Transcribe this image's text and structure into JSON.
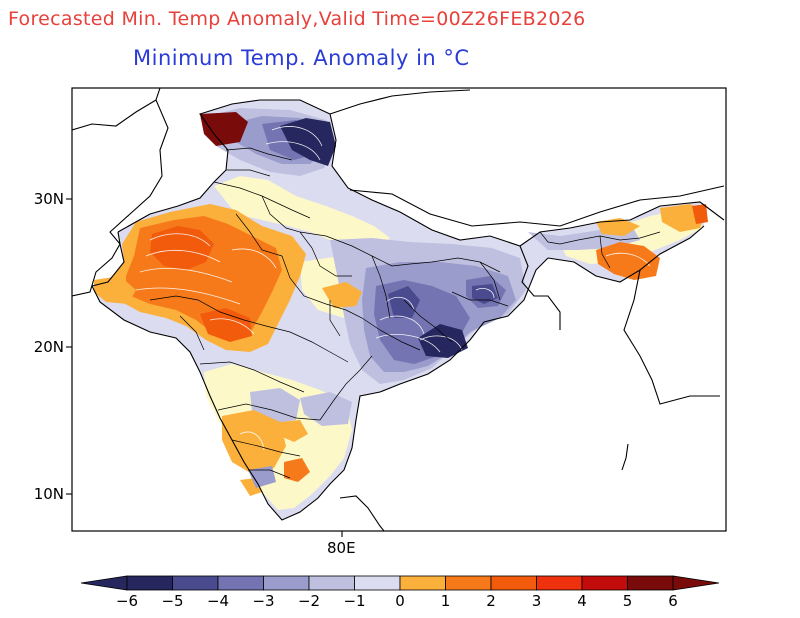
{
  "header": {
    "title": "Forecasted Min. Temp Anomaly,Valid Time=00Z26FEB2026",
    "subtitle": "Minimum Temp. Anomaly in °C"
  },
  "axes": {
    "lat_labels": [
      "30N",
      "20N",
      "10N"
    ],
    "lon_labels": [
      "80E"
    ]
  },
  "colorbar": {
    "ticks": [
      "−6",
      "−5",
      "−4",
      "−3",
      "−2",
      "−1",
      "0",
      "1",
      "2",
      "3",
      "4",
      "5",
      "6"
    ],
    "colors": [
      "#26275e",
      "#4a4b8e",
      "#7474b2",
      "#9a9ccb",
      "#bfc0e0",
      "#dcdcf0",
      "#fdf8c8",
      "#fbb03b",
      "#f77a1a",
      "#f25a0c",
      "#f0310e",
      "#c20b0b",
      "#7a0b0b"
    ]
  },
  "map": {
    "region": "India",
    "variable": "Minimum temperature anomaly",
    "units": "°C"
  }
}
